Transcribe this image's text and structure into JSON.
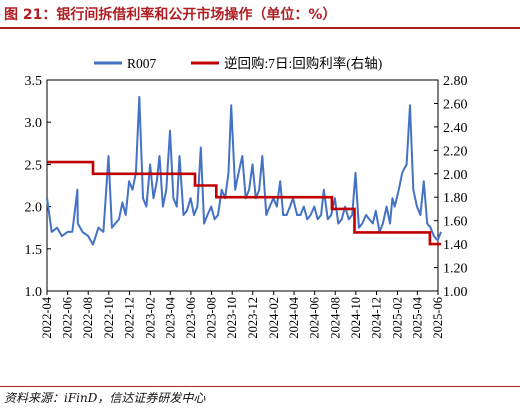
{
  "header": {
    "title": "图 21：银行间拆借利率和公开市场操作（单位：%）"
  },
  "footer": {
    "source": "资料来源：iFinD，信达证券研发中心"
  },
  "colors": {
    "title": "#b01e23",
    "series_r007": "#4472c4",
    "series_repo": "#c00000"
  },
  "chart_data": {
    "type": "line",
    "title": "",
    "xlabel": "",
    "ylabel": "",
    "ylabel_right": "",
    "grid": false,
    "legend_position": "top",
    "ylim": [
      1.0,
      3.5
    ],
    "ylim_right": [
      1.0,
      2.8
    ],
    "x_range": [
      "2022-04",
      "2025-06"
    ],
    "yticks": [
      "1.0",
      "1.5",
      "2.0",
      "2.5",
      "3.0",
      "3.5"
    ],
    "yticks_right": [
      "1.00",
      "1.20",
      "1.40",
      "1.60",
      "1.80",
      "2.00",
      "2.20",
      "2.40",
      "2.60",
      "2.80"
    ],
    "xticks": [
      "2022-04",
      "2022-06",
      "2022-08",
      "2022-10",
      "2022-12",
      "2023-02",
      "2023-04",
      "2023-06",
      "2023-08",
      "2023-10",
      "2023-12",
      "2024-02",
      "2024-04",
      "2024-06",
      "2024-08",
      "2024-10",
      "2024-12",
      "2025-02",
      "2025-04",
      "2025-06"
    ],
    "series": [
      {
        "name": "R007",
        "axis": "left",
        "x": [
          "2022-04-01",
          "2022-04-15",
          "2022-05-01",
          "2022-05-15",
          "2022-06-01",
          "2022-06-15",
          "2022-06-30",
          "2022-07-01",
          "2022-07-15",
          "2022-08-01",
          "2022-08-15",
          "2022-08-31",
          "2022-09-15",
          "2022-09-30",
          "2022-10-10",
          "2022-10-20",
          "2022-10-31",
          "2022-11-10",
          "2022-11-20",
          "2022-11-30",
          "2022-12-10",
          "2022-12-20",
          "2022-12-30",
          "2023-01-10",
          "2023-01-20",
          "2023-01-31",
          "2023-02-10",
          "2023-02-20",
          "2023-02-28",
          "2023-03-10",
          "2023-03-20",
          "2023-03-31",
          "2023-04-10",
          "2023-04-20",
          "2023-04-28",
          "2023-05-10",
          "2023-05-20",
          "2023-05-31",
          "2023-06-10",
          "2023-06-20",
          "2023-06-30",
          "2023-07-10",
          "2023-07-20",
          "2023-07-31",
          "2023-08-10",
          "2023-08-20",
          "2023-08-31",
          "2023-09-10",
          "2023-09-20",
          "2023-09-28",
          "2023-10-10",
          "2023-10-20",
          "2023-10-31",
          "2023-11-10",
          "2023-11-20",
          "2023-11-30",
          "2023-12-10",
          "2023-12-20",
          "2023-12-29",
          "2024-01-10",
          "2024-01-20",
          "2024-01-31",
          "2024-02-10",
          "2024-02-20",
          "2024-02-29",
          "2024-03-10",
          "2024-03-20",
          "2024-03-29",
          "2024-04-10",
          "2024-04-20",
          "2024-04-30",
          "2024-05-10",
          "2024-05-20",
          "2024-05-31",
          "2024-06-10",
          "2024-06-20",
          "2024-06-28",
          "2024-07-10",
          "2024-07-20",
          "2024-07-31",
          "2024-08-10",
          "2024-08-20",
          "2024-08-30",
          "2024-09-10",
          "2024-09-20",
          "2024-09-30",
          "2024-10-10",
          "2024-10-20",
          "2024-10-31",
          "2024-11-10",
          "2024-11-20",
          "2024-11-29",
          "2024-12-10",
          "2024-12-20",
          "2024-12-31",
          "2025-01-10",
          "2025-01-17",
          "2025-01-24",
          "2025-02-05",
          "2025-02-15",
          "2025-02-28",
          "2025-03-10",
          "2025-03-20",
          "2025-03-31",
          "2025-04-10",
          "2025-04-20",
          "2025-04-30",
          "2025-05-10",
          "2025-05-20",
          "2025-05-31",
          "2025-06-10"
        ],
        "values": [
          2.1,
          1.7,
          1.75,
          1.65,
          1.7,
          1.7,
          2.2,
          1.8,
          1.7,
          1.65,
          1.55,
          1.75,
          1.7,
          2.6,
          1.75,
          1.8,
          1.85,
          2.05,
          1.9,
          2.3,
          2.2,
          2.4,
          3.3,
          2.1,
          2.0,
          2.5,
          2.1,
          2.3,
          2.6,
          2.0,
          2.2,
          2.9,
          2.1,
          2.0,
          2.6,
          1.9,
          1.95,
          2.1,
          1.9,
          2.0,
          2.7,
          1.8,
          1.9,
          2.0,
          1.85,
          1.9,
          2.2,
          2.1,
          2.4,
          3.2,
          2.2,
          2.4,
          2.6,
          2.1,
          2.2,
          2.5,
          2.1,
          2.2,
          2.6,
          1.9,
          2.0,
          2.1,
          2.0,
          2.3,
          1.9,
          1.9,
          2.0,
          2.1,
          1.9,
          1.9,
          2.0,
          1.85,
          1.9,
          2.0,
          1.85,
          1.9,
          2.2,
          1.85,
          1.9,
          2.1,
          1.8,
          1.85,
          2.0,
          1.85,
          1.9,
          2.4,
          1.75,
          1.8,
          1.9,
          1.85,
          1.8,
          1.95,
          1.7,
          1.8,
          2.0,
          1.8,
          2.1,
          2.0,
          2.2,
          2.4,
          2.5,
          3.2,
          2.2,
          2.0,
          1.9,
          2.3,
          1.8,
          1.75,
          1.65,
          1.6,
          1.7
        ]
      },
      {
        "name": "逆回购:7日:回购利率(右轴)",
        "axis": "right",
        "step": true,
        "x": [
          "2022-04-01",
          "2022-08-15",
          "2023-06-13",
          "2023-08-15",
          "2024-07-22",
          "2024-09-27",
          "2025-05-08",
          "2025-06-10"
        ],
        "values": [
          2.1,
          2.0,
          1.9,
          1.8,
          1.7,
          1.5,
          1.4,
          1.4
        ]
      }
    ]
  }
}
